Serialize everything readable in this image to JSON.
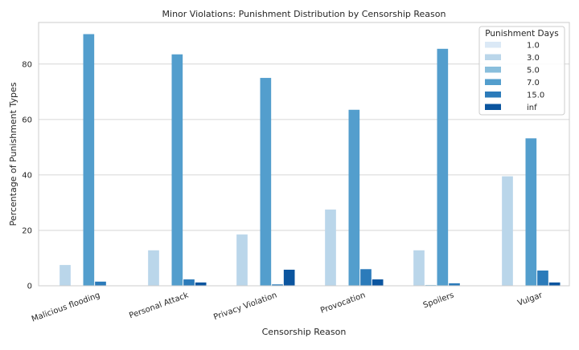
{
  "chart_data": {
    "type": "bar",
    "title": "Minor Violations: Punishment Distribution by Censorship Reason",
    "xlabel": "Censorship Reason",
    "ylabel": "Percentage of Punishment Types",
    "ylim": [
      0,
      95
    ],
    "yticks": [
      0,
      20,
      40,
      60,
      80
    ],
    "grid": true,
    "legend_title": "Punishment Days",
    "legend_position": "top-right",
    "categories": [
      "Malicious flooding",
      "Personal Attack",
      "Privacy Violation",
      "Provocation",
      "Spoilers",
      "Vulgar"
    ],
    "series": [
      {
        "name": "1.0",
        "color": "#dbe9f6",
        "values": [
          0.0,
          0.0,
          0.0,
          0.0,
          0.0,
          0.0
        ]
      },
      {
        "name": "3.0",
        "color": "#bad6ea",
        "values": [
          7.5,
          12.8,
          18.5,
          27.5,
          12.8,
          39.5
        ]
      },
      {
        "name": "5.0",
        "color": "#89bedc",
        "values": [
          0.0,
          0.0,
          0.0,
          0.0,
          0.3,
          0.0
        ]
      },
      {
        "name": "7.0",
        "color": "#539ecd",
        "values": [
          90.8,
          83.5,
          75.0,
          63.5,
          85.5,
          53.2
        ]
      },
      {
        "name": "15.0",
        "color": "#2b7bba",
        "values": [
          1.5,
          2.3,
          0.5,
          6.0,
          0.9,
          5.5
        ]
      },
      {
        "name": "inf",
        "color": "#0b559f",
        "values": [
          0.0,
          1.2,
          5.8,
          2.3,
          0.0,
          1.2
        ]
      }
    ]
  }
}
